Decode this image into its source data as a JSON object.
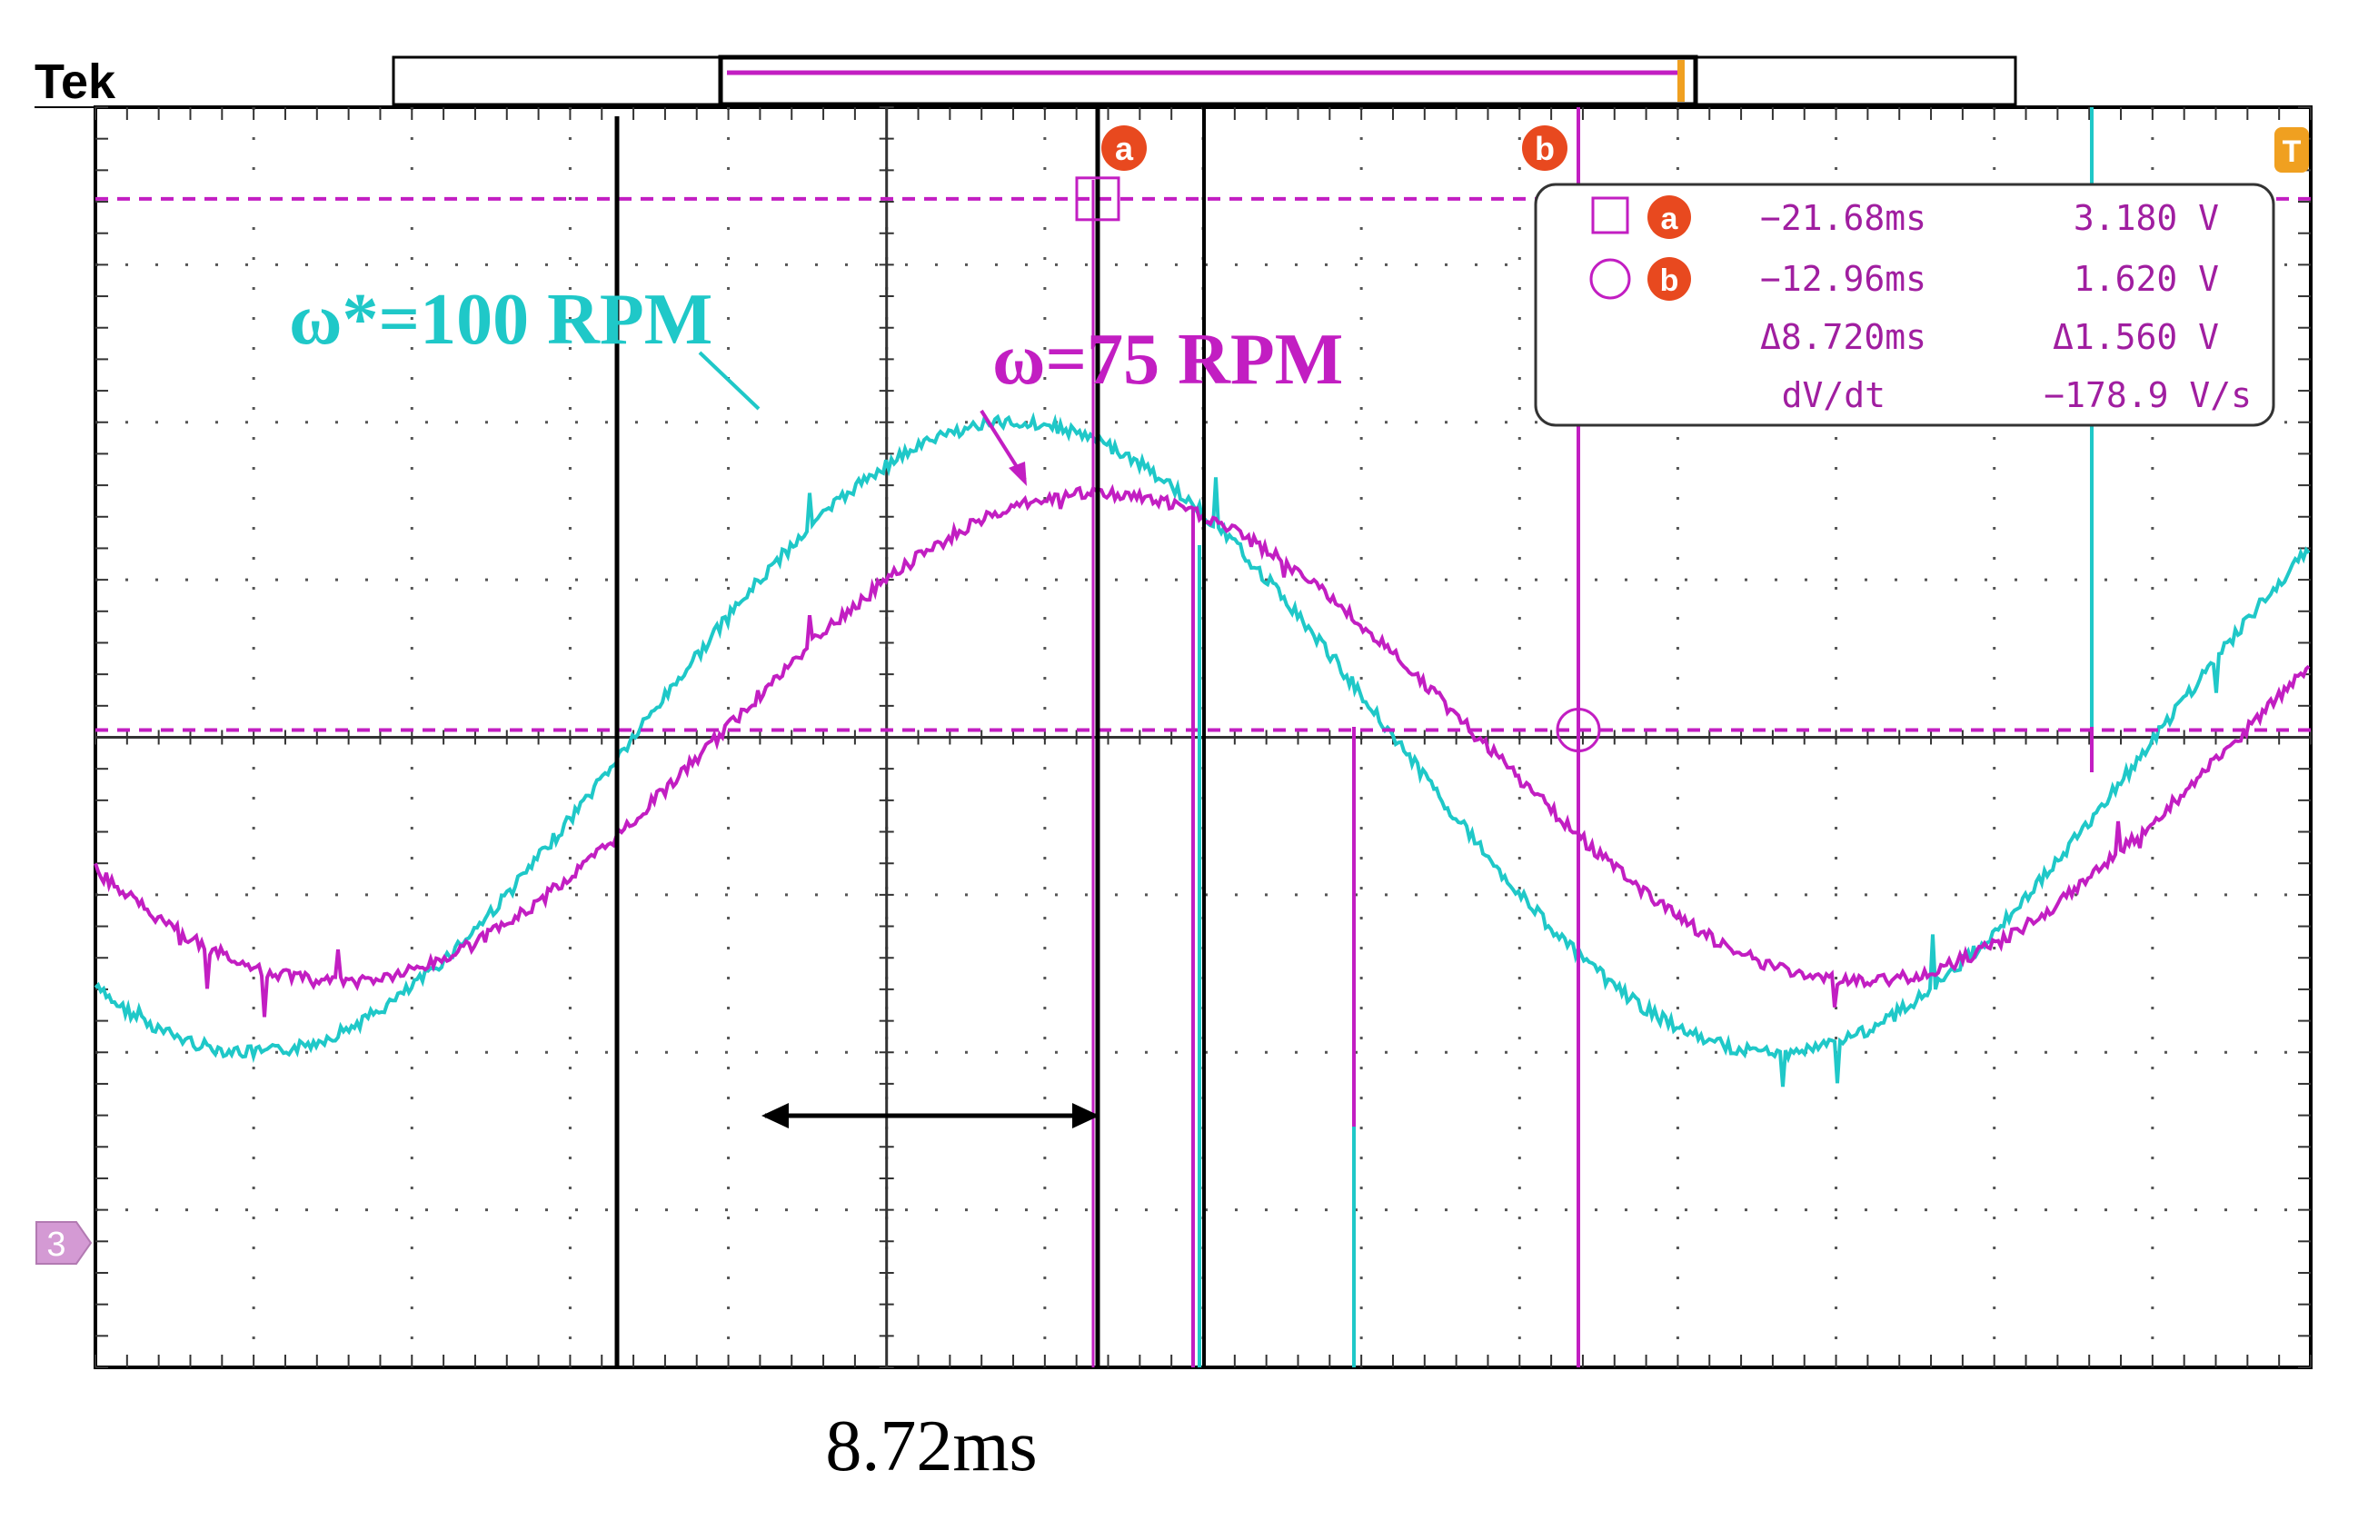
{
  "brand": "Tek",
  "channel_marker": "3",
  "cursor_labels": {
    "a": "a",
    "b": "b",
    "trigger": "T"
  },
  "readout": {
    "a_time": "−21.68ms",
    "a_volt": "3.180 V",
    "b_time": "−12.96ms",
    "b_volt": "1.620 V",
    "delta_time": "Δ8.720ms",
    "delta_volt": "Δ1.560 V",
    "rate_label": "dV/dt",
    "rate_value": "−178.9 V/s"
  },
  "annotations": {
    "ref_speed": "ω*=100 RPM",
    "actual_speed": "ω=75 RPM",
    "interval": "8.72ms"
  },
  "colors": {
    "cyan": "#1fc8c8",
    "magenta": "#c21ec2",
    "cursor_badge": "#e8491f",
    "trigger": "#f0a020",
    "grid": "#555555",
    "frame": "#000000"
  },
  "chart_data": {
    "type": "line",
    "grid": true,
    "divisions": {
      "x": 14,
      "y": 8
    },
    "series": [
      {
        "name": "ω*=100 RPM",
        "color": "#1fc8c8",
        "period_ms": 27.6,
        "amplitude_div": 2.0,
        "peak_time_ms": -23.2
      },
      {
        "name": "ω=75 RPM",
        "color": "#c21ec2",
        "period_ms": 27.6,
        "amplitude_div": 1.55,
        "peak_time_ms": -21.68
      }
    ],
    "cursors": [
      {
        "id": "a",
        "time_ms": -21.68,
        "volt": 3.18
      },
      {
        "id": "b",
        "time_ms": -12.96,
        "volt": 1.62
      }
    ],
    "delta_time_ms": 8.72,
    "delta_volt": 1.56,
    "dv_dt": -178.9
  }
}
